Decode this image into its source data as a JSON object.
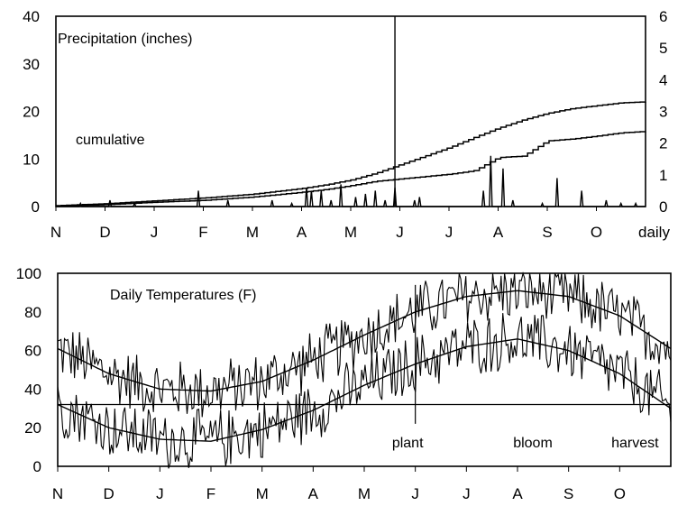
{
  "chart_data": [
    {
      "type": "line",
      "title": "Precipitation (inches)",
      "x_categories": [
        "N",
        "D",
        "J",
        "F",
        "M",
        "A",
        "M",
        "J",
        "J",
        "A",
        "S",
        "O"
      ],
      "x_end_label": "daily",
      "left_axis": {
        "ylim": [
          0,
          40
        ],
        "ticks": [
          0,
          10,
          20,
          30,
          40
        ],
        "label": "cumulative"
      },
      "right_axis": {
        "ylim": [
          0,
          6
        ],
        "ticks": [
          0,
          1,
          2,
          3,
          4,
          5,
          6
        ],
        "label": "daily"
      },
      "annotation": "cumulative",
      "vertical_marker_month_index": 6.9,
      "series": [
        {
          "axis": "left",
          "x": [
            0,
            1,
            2,
            3,
            4,
            5,
            5.5,
            6,
            6.5,
            7,
            7.5,
            8,
            8.5,
            9,
            9.5,
            10,
            10.5,
            11,
            11.5,
            12
          ],
          "values": [
            0.2,
            0.6,
            1.2,
            1.8,
            2.6,
            3.8,
            4.6,
            5.6,
            7.0,
            8.8,
            10.6,
            12.4,
            14.5,
            16.5,
            18.2,
            19.6,
            20.6,
            21.2,
            21.8,
            22.0
          ]
        },
        {
          "axis": "left",
          "x": [
            0,
            1,
            2,
            3,
            4,
            5,
            5.5,
            6,
            6.5,
            7,
            7.5,
            8,
            8.5,
            9,
            9.5,
            10,
            10.5,
            11,
            11.5,
            12
          ],
          "values": [
            0.1,
            0.4,
            0.9,
            1.3,
            2.0,
            3.0,
            3.6,
            4.4,
            5.3,
            5.8,
            6.3,
            6.8,
            7.5,
            10.3,
            10.6,
            13.8,
            14.2,
            14.8,
            15.5,
            15.8
          ]
        },
        {
          "axis": "right",
          "style": "spikes",
          "x": [
            0.5,
            1.1,
            1.6,
            2.9,
            3.5,
            4.4,
            4.8,
            5.1,
            5.2,
            5.4,
            5.6,
            5.8,
            6.1,
            6.3,
            6.5,
            6.7,
            6.9,
            7.3,
            7.4,
            8.7,
            8.85,
            9.1,
            9.3,
            9.9,
            10.2,
            10.7,
            11.2,
            11.5,
            11.8
          ],
          "values": [
            0.1,
            0.2,
            0.1,
            0.5,
            0.2,
            0.2,
            0.1,
            0.6,
            0.5,
            0.5,
            0.2,
            0.7,
            0.3,
            0.4,
            0.5,
            0.2,
            0.6,
            0.2,
            0.3,
            0.5,
            1.6,
            1.2,
            0.2,
            0.1,
            0.9,
            0.5,
            0.2,
            0.1,
            0.1
          ]
        }
      ]
    },
    {
      "type": "line",
      "title": "Daily Temperatures (F)",
      "x_categories": [
        "N",
        "D",
        "J",
        "F",
        "M",
        "A",
        "M",
        "J",
        "J",
        "A",
        "S",
        "O"
      ],
      "ylim": [
        0,
        100
      ],
      "ticks": [
        0,
        20,
        40,
        60,
        80,
        100
      ],
      "reference_line": 32,
      "vertical_marker_month_index": 7.0,
      "annotations": [
        {
          "text": "plant",
          "month": 6.85
        },
        {
          "text": "bloom",
          "month": 9.3
        },
        {
          "text": "harvest",
          "month": 11.3
        }
      ],
      "series": [
        {
          "x": [
            0,
            1,
            2,
            3,
            4,
            5,
            6,
            7,
            8,
            9,
            10,
            11,
            12
          ],
          "values": [
            61,
            48,
            40,
            39,
            44,
            55,
            68,
            80,
            88,
            91,
            88,
            78,
            61
          ]
        },
        {
          "x": [
            0,
            1,
            2,
            3,
            4,
            5,
            6,
            7,
            8,
            9,
            10,
            11,
            12
          ],
          "values": [
            32,
            20,
            14,
            13,
            19,
            29,
            42,
            53,
            62,
            66,
            60,
            48,
            30
          ]
        },
        {
          "style": "noisy",
          "baseline": "upper",
          "amplitude": 11
        },
        {
          "style": "noisy",
          "baseline": "lower",
          "amplitude": 11
        }
      ]
    }
  ]
}
